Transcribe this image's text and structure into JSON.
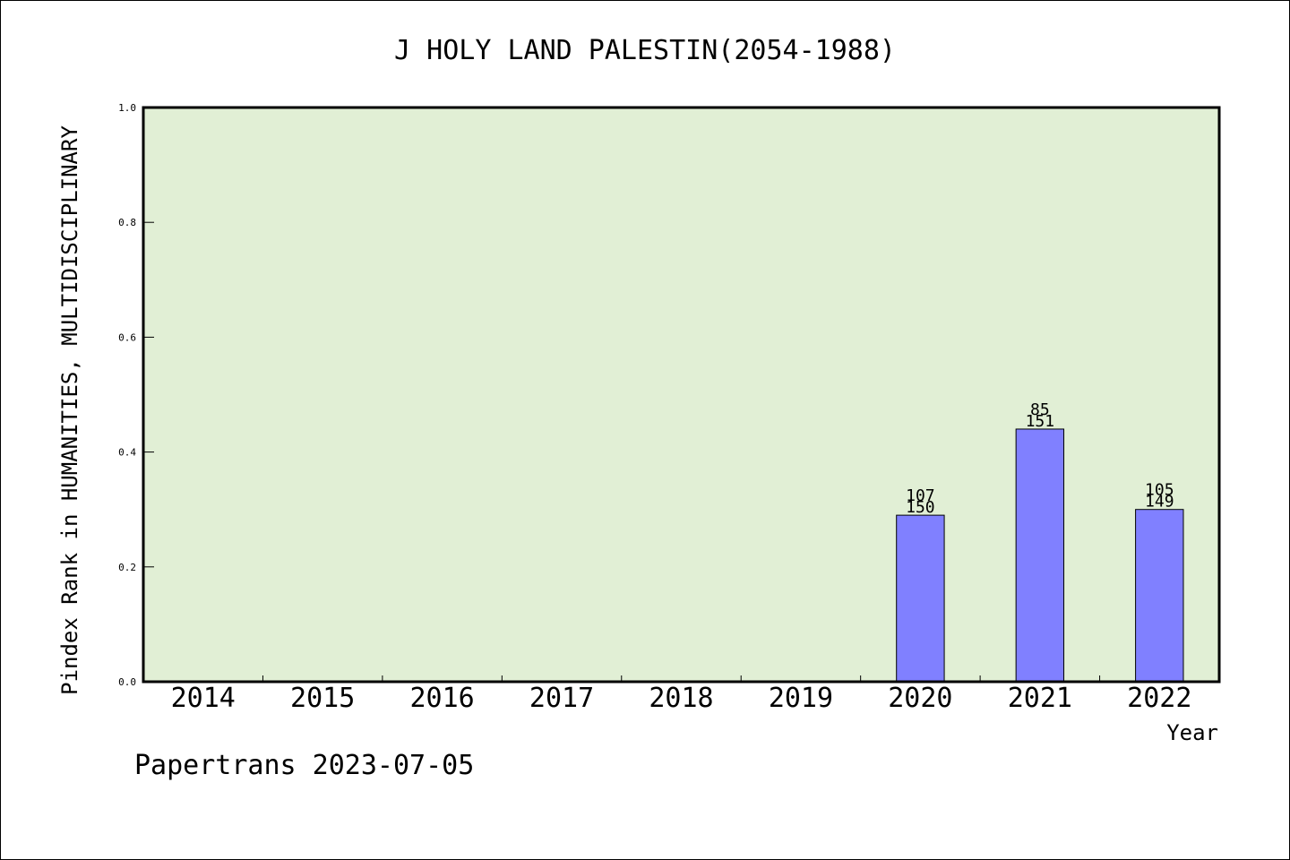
{
  "chart_data": {
    "type": "bar",
    "title": "J HOLY LAND PALESTIN(2054-1988)",
    "xlabel": "Year",
    "ylabel": "Pindex Rank in HUMANITIES, MULTIDISCIPLINARY",
    "categories": [
      "2014",
      "2015",
      "2016",
      "2017",
      "2018",
      "2019",
      "2020",
      "2021",
      "2022"
    ],
    "series": [
      {
        "values": [
          null,
          null,
          null,
          null,
          null,
          null,
          0.29,
          0.44,
          0.3
        ],
        "labels_top": [
          null,
          null,
          null,
          null,
          null,
          null,
          "107",
          "85",
          "105"
        ],
        "labels_bottom": [
          null,
          null,
          null,
          null,
          null,
          null,
          "150",
          "151",
          "149"
        ]
      }
    ],
    "ylim": [
      0,
      1.0
    ],
    "yticks": [
      "0.0",
      "0.2",
      "0.4",
      "0.6",
      "0.8",
      "1.0"
    ],
    "grid": false,
    "colors": {
      "plot_background": "#e1efd5",
      "bar_fill": "#8080ff",
      "bar_stroke": "#000000"
    }
  },
  "footer": {
    "text": "Papertrans 2023-07-05"
  }
}
